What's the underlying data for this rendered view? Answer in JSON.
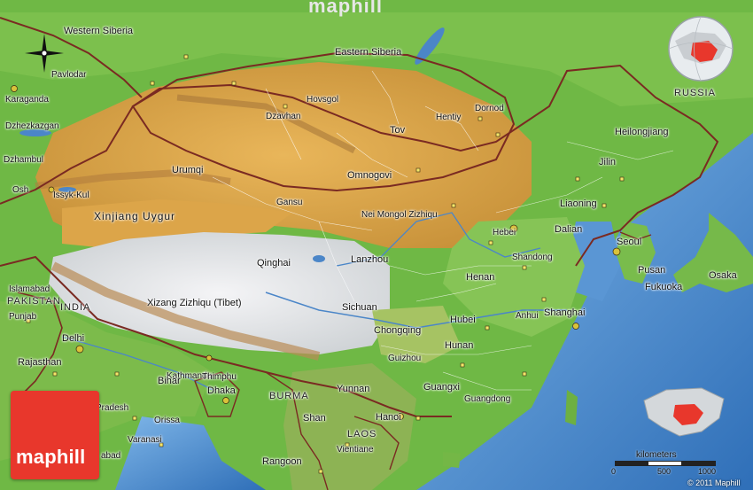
{
  "watermark": "maphill",
  "logo_text": "maphill",
  "country_label": "RUSSIA",
  "labels": [
    {
      "text": "Western Siberia",
      "cls": "region"
    },
    {
      "text": "Eastern Siberia",
      "cls": "region"
    },
    {
      "text": "Pavlodar",
      "cls": "city"
    },
    {
      "text": "Karaganda",
      "cls": "city"
    },
    {
      "text": "Dzhezkazgan",
      "cls": "city"
    },
    {
      "text": "Dzhambul",
      "cls": "city"
    },
    {
      "text": "Osh",
      "cls": "city"
    },
    {
      "text": "Issyk-Kul",
      "cls": "city"
    },
    {
      "text": "Xinjiang Uygur",
      "cls": "big"
    },
    {
      "text": "Urumqi",
      "cls": "region"
    },
    {
      "text": "Hovsgol",
      "cls": "city"
    },
    {
      "text": "Dzavhan",
      "cls": "city"
    },
    {
      "text": "Tov",
      "cls": "region"
    },
    {
      "text": "Hentiy",
      "cls": "city"
    },
    {
      "text": "Dornod",
      "cls": "city"
    },
    {
      "text": "Omnogovi",
      "cls": "region"
    },
    {
      "text": "Gansu",
      "cls": "city"
    },
    {
      "text": "Nei Mongol Zizhiqu",
      "cls": "city"
    },
    {
      "text": "Heilongjiang",
      "cls": "region"
    },
    {
      "text": "Jilin",
      "cls": "region"
    },
    {
      "text": "Liaoning",
      "cls": "region"
    },
    {
      "text": "Hebei",
      "cls": "city"
    },
    {
      "text": "Dalian",
      "cls": "region"
    },
    {
      "text": "Seoul",
      "cls": "region"
    },
    {
      "text": "Pusan",
      "cls": "region"
    },
    {
      "text": "Fukuoka",
      "cls": "region"
    },
    {
      "text": "Osaka",
      "cls": "region"
    },
    {
      "text": "Shandong",
      "cls": "city"
    },
    {
      "text": "Qinghai",
      "cls": "region"
    },
    {
      "text": "Lanzhou",
      "cls": "region"
    },
    {
      "text": "Henan",
      "cls": "region"
    },
    {
      "text": "Anhui",
      "cls": "city"
    },
    {
      "text": "Shanghai",
      "cls": "region"
    },
    {
      "text": "Hubei",
      "cls": "region"
    },
    {
      "text": "Xizang Zizhiqu (Tibet)",
      "cls": "region"
    },
    {
      "text": "Sichuan",
      "cls": "region"
    },
    {
      "text": "Chongqing",
      "cls": "region"
    },
    {
      "text": "Hunan",
      "cls": "region"
    },
    {
      "text": "Guizhou",
      "cls": "city"
    },
    {
      "text": "Yunnan",
      "cls": "region"
    },
    {
      "text": "Guangxi",
      "cls": "region"
    },
    {
      "text": "Guangdong",
      "cls": "city"
    },
    {
      "text": "Hanoi",
      "cls": "region"
    },
    {
      "text": "LAOS",
      "cls": "country"
    },
    {
      "text": "Vientiane",
      "cls": "city"
    },
    {
      "text": "Rangoon",
      "cls": "region"
    },
    {
      "text": "BURMA",
      "cls": "country"
    },
    {
      "text": "Shan",
      "cls": "region"
    },
    {
      "text": "Dhaka",
      "cls": "region"
    },
    {
      "text": "Kathmandu",
      "cls": "city"
    },
    {
      "text": "Thimphu",
      "cls": "city"
    },
    {
      "text": "Bihar",
      "cls": "region"
    },
    {
      "text": "Delhi",
      "cls": "region"
    },
    {
      "text": "Rajasthan",
      "cls": "region"
    },
    {
      "text": "Punjab",
      "cls": "city"
    },
    {
      "text": "INDIA",
      "cls": "country"
    },
    {
      "text": "Islamabad",
      "cls": "city"
    },
    {
      "text": "PAKISTAN",
      "cls": "country"
    },
    {
      "text": "Pradesh",
      "cls": "city"
    },
    {
      "text": "Orissa",
      "cls": "city"
    },
    {
      "text": "Varanasi",
      "cls": "city"
    },
    {
      "text": "abad",
      "cls": "city"
    }
  ],
  "scale": {
    "title": "kilometers",
    "ticks": [
      "0",
      "500",
      "1000"
    ]
  },
  "copyright": "© 2011 Maphill",
  "colors": {
    "logo": "#e8372c",
    "sea": "#3f7fc4",
    "lowland": "#5fae3a",
    "highland": "#c8963d",
    "plateau": "#e8e8ea",
    "border": "#7a2a22"
  }
}
